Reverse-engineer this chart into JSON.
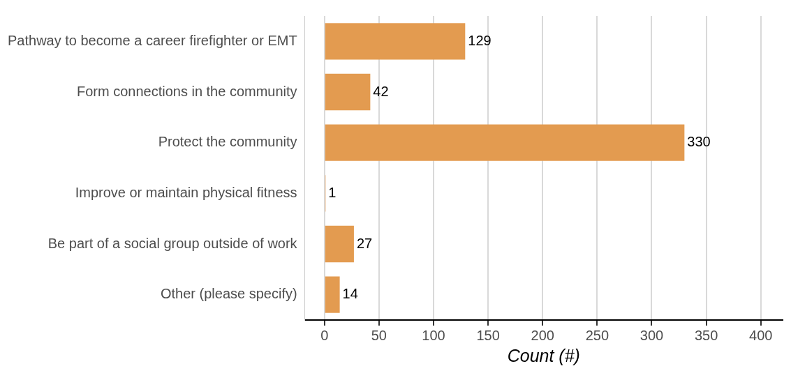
{
  "chart_data": {
    "type": "bar",
    "orientation": "horizontal",
    "xlabel": "Count (#)",
    "categories": [
      "Pathway to become a career firefighter or EMT",
      "Form connections in the community",
      "Protect the community",
      "Improve or maintain physical fitness",
      "Be part of a social group outside of work",
      "Other (please specify)"
    ],
    "values": [
      129,
      42,
      330,
      1,
      27,
      14
    ],
    "color": "#e39b50",
    "xlim": [
      -18,
      420
    ],
    "xticks": [
      0,
      50,
      100,
      150,
      200,
      250,
      300,
      350,
      400
    ],
    "grid": "x",
    "data_labels": true,
    "legend": false
  }
}
